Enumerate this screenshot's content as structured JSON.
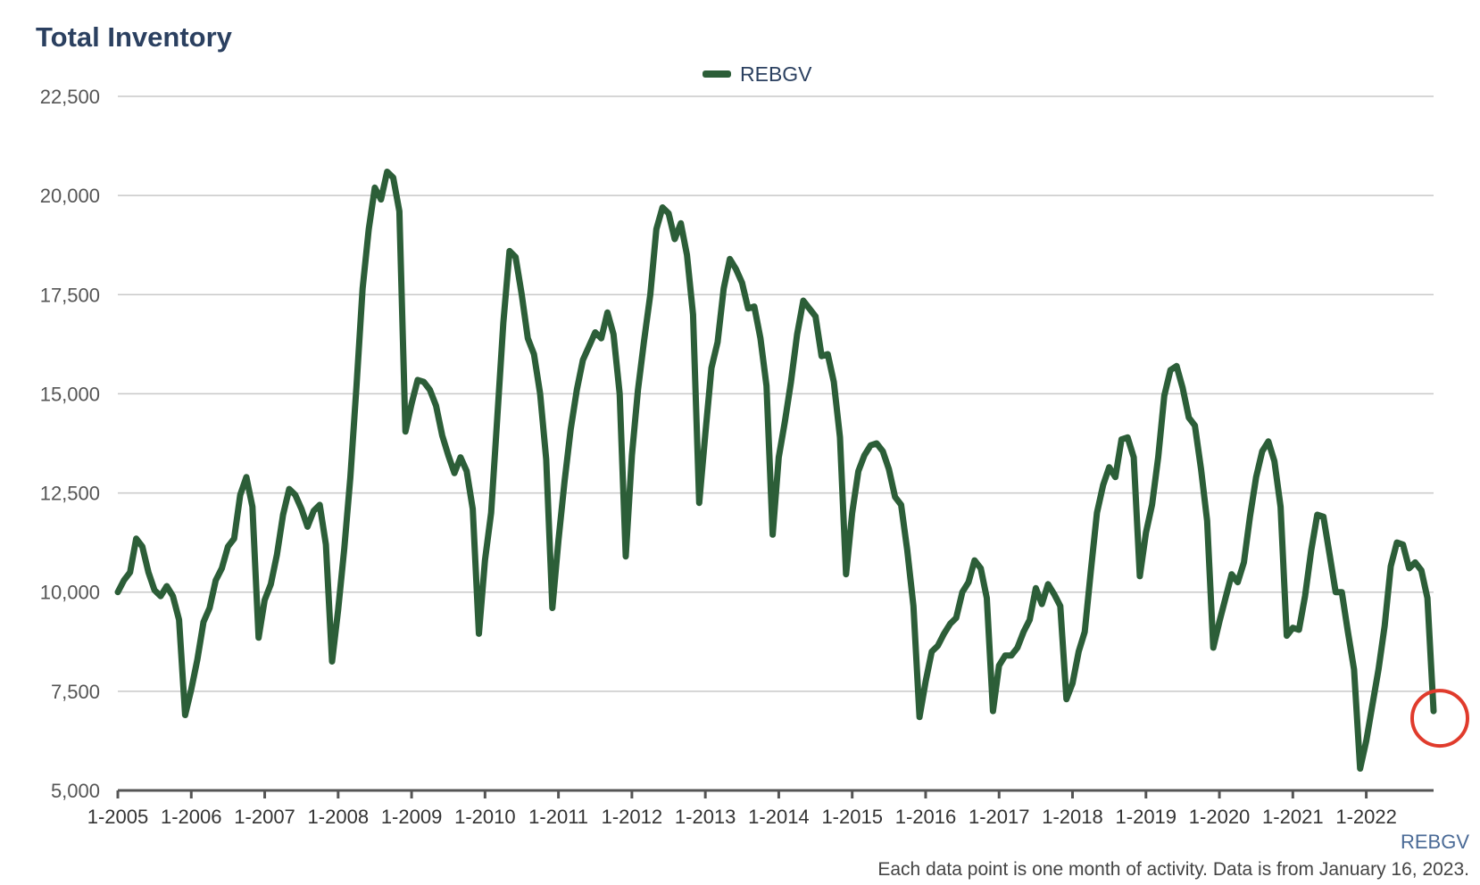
{
  "title": "Total Inventory",
  "footer": {
    "source": "REBGV",
    "note": "Each data point is one month of activity. Data is from January 16, 2023."
  },
  "colors": {
    "series": "#2c5e38",
    "grid": "#c8c8c8",
    "axis": "#555555",
    "title": "#2b4060",
    "highlight": "#e03b2c"
  },
  "chart_data": {
    "type": "line",
    "title": "Total Inventory",
    "xlabel": "",
    "ylabel": "",
    "ylim": [
      5000,
      22500
    ],
    "yticks": [
      5000,
      7500,
      10000,
      12500,
      15000,
      17500,
      20000,
      22500
    ],
    "ytick_labels": [
      "5,000",
      "7,500",
      "10,000",
      "12,500",
      "15,000",
      "17,500",
      "20,000",
      "22,500"
    ],
    "xticks": [
      "1-2005",
      "1-2006",
      "1-2007",
      "1-2008",
      "1-2009",
      "1-2010",
      "1-2011",
      "1-2012",
      "1-2013",
      "1-2014",
      "1-2015",
      "1-2016",
      "1-2017",
      "1-2018",
      "1-2019",
      "1-2020",
      "1-2021",
      "1-2022"
    ],
    "x_start": "1-2005",
    "x_end": "12-2022",
    "grid": true,
    "legend": "top-center",
    "highlight": {
      "label": "12-2022",
      "marker": "circle"
    },
    "series": [
      {
        "name": "REBGV",
        "values": [
          10000,
          10300,
          10500,
          11350,
          11150,
          10500,
          10050,
          9900,
          10150,
          9900,
          9300,
          6900,
          7550,
          8300,
          9250,
          9600,
          10300,
          10600,
          11150,
          11350,
          12450,
          12900,
          12150,
          8850,
          9800,
          10200,
          10950,
          11950,
          12600,
          12450,
          12100,
          11650,
          12050,
          12200,
          11200,
          8250,
          9550,
          11100,
          12900,
          15200,
          17650,
          19150,
          20200,
          19900,
          20600,
          20450,
          19600,
          14050,
          14750,
          15350,
          15300,
          15100,
          14700,
          13950,
          13450,
          13000,
          13400,
          13050,
          12100,
          8950,
          10800,
          12000,
          14400,
          16800,
          18600,
          18450,
          17500,
          16400,
          16000,
          15000,
          13350,
          9600,
          11300,
          12800,
          14100,
          15100,
          15850,
          16200,
          16550,
          16400,
          17050,
          16500,
          15000,
          10900,
          13450,
          15100,
          16350,
          17500,
          19150,
          19700,
          19550,
          18900,
          19300,
          18500,
          17000,
          12250,
          14000,
          15650,
          16300,
          17650,
          18400,
          18150,
          17800,
          17150,
          17200,
          16400,
          15200,
          11450,
          13400,
          14300,
          15300,
          16500,
          17350,
          17150,
          16950,
          15950,
          16000,
          15300,
          13900,
          10450,
          12000,
          13050,
          13450,
          13700,
          13750,
          13550,
          13100,
          12400,
          12200,
          11050,
          9650,
          6850,
          7750,
          8500,
          8650,
          8950,
          9200,
          9350,
          10000,
          10250,
          10800,
          10600,
          9850,
          7000,
          8150,
          8400,
          8400,
          8600,
          9000,
          9300,
          10100,
          9700,
          10200,
          9950,
          9650,
          7300,
          7700,
          8500,
          9000,
          10550,
          12000,
          12700,
          13150,
          12900,
          13850,
          13900,
          13400,
          10400,
          11500,
          12200,
          13400,
          14950,
          15600,
          15700,
          15150,
          14400,
          14200,
          13100,
          11800,
          8600,
          9250,
          9850,
          10450,
          10250,
          10750,
          11900,
          12900,
          13550,
          13800,
          13300,
          12150,
          8900,
          9100,
          9050,
          9900,
          11050,
          11950,
          11900,
          10950,
          10000,
          10000,
          9000,
          8050,
          5550,
          6250,
          7150,
          8050,
          9150,
          10650,
          11250,
          11200,
          10600,
          10750,
          10550,
          9850,
          7000
        ]
      }
    ]
  }
}
